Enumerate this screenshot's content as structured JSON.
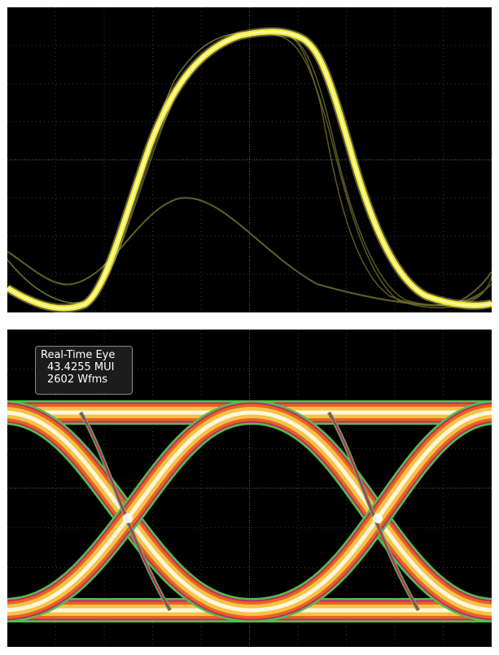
{
  "top_panel": {
    "trace_color": "#f7ef3a",
    "dim_trace_color": "#6b6a2a",
    "background": "#000000",
    "grid_color": "#3a3a3a"
  },
  "bottom_panel": {
    "readout": {
      "title": "Real-Time Eye",
      "value": "43.4255 MUI",
      "waveforms": "2602 Wfms"
    },
    "colors": {
      "core": "#fff6dc",
      "mid": "#f7c24a",
      "outer": "#e8641c",
      "edge_inner": "#c22a6a",
      "edge_outer": "#4ec24a"
    }
  },
  "graticule": {
    "x_divisions": 10,
    "y_divisions": 8
  }
}
